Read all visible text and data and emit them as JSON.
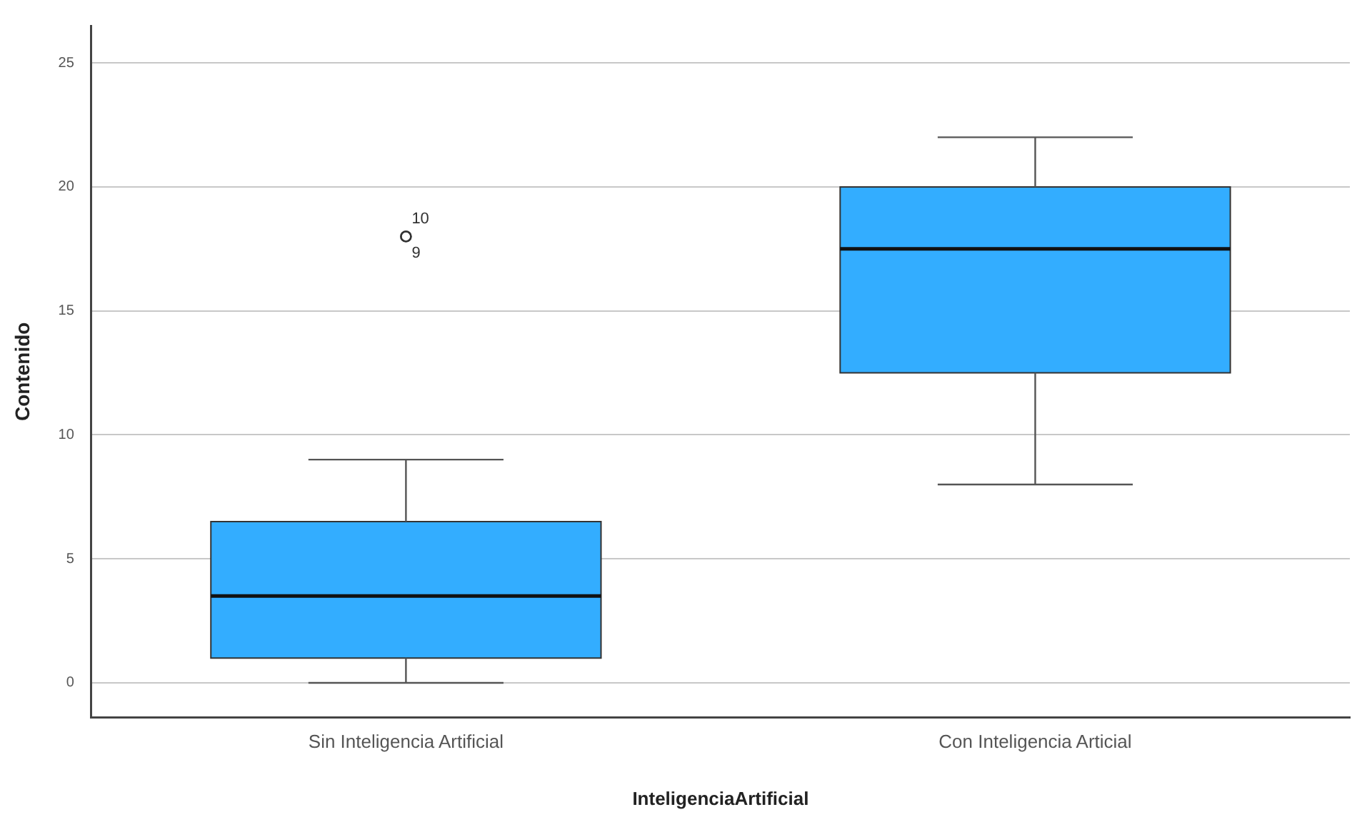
{
  "chart_data": {
    "type": "box",
    "xlabel": "InteligenciaArtificial",
    "ylabel": "Contenido",
    "categories": [
      "Sin Inteligencia Artificial",
      "Con Inteligencia Articial"
    ],
    "color": "#33adff",
    "boxes": [
      {
        "low": 0,
        "q1": 1,
        "median": 3.5,
        "q3": 6.5,
        "high": 9,
        "outliers": [
          18,
          18
        ]
      },
      {
        "low": 8,
        "q1": 12.5,
        "median": 17.5,
        "q3": 20,
        "high": 22
      }
    ],
    "ylim": [
      -1.4,
      26.5
    ],
    "yticks": [
      0,
      5,
      10,
      15,
      20,
      25
    ],
    "grid": "y",
    "marker": "circle",
    "annotations": [
      "10",
      "9"
    ]
  }
}
